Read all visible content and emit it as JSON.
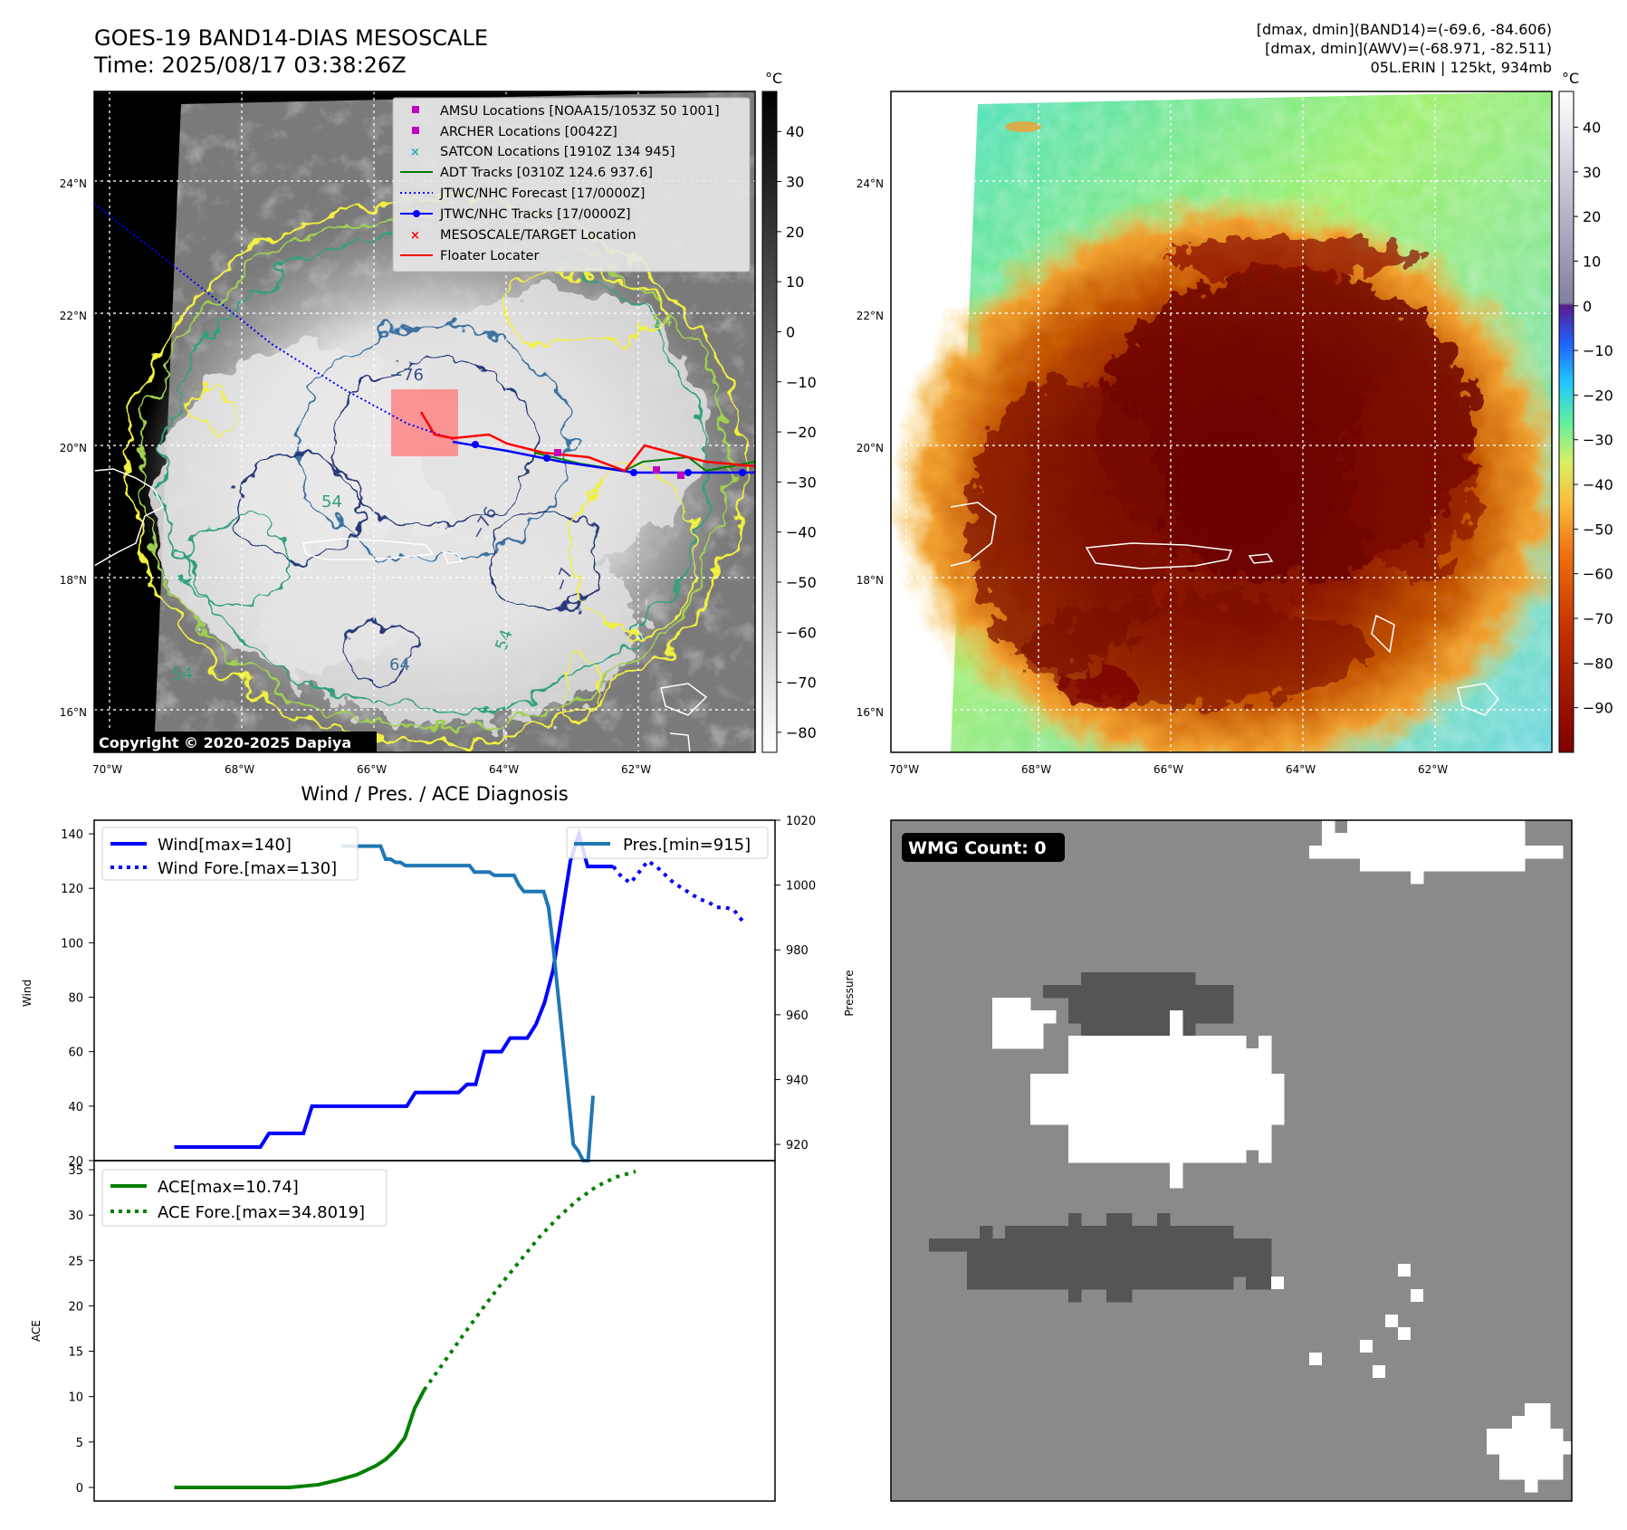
{
  "header": {
    "title_line1": "GOES-19 BAND14-DIAS MESOSCALE",
    "title_line2": "Time: 2025/08/17 03:38:26Z",
    "info_line1": "[dmax, dmin](BAND14)=(-69.6, -84.606)",
    "info_line2": "[dmax, dmin](AWV)=(-68.971, -82.511)",
    "info_line3": "05L.ERIN | 125kt, 934mb"
  },
  "map_axes": {
    "lat_ticks": [
      "24°N",
      "22°N",
      "20°N",
      "18°N",
      "16°N"
    ],
    "lat_values": [
      24,
      22,
      20,
      18,
      16
    ],
    "lon_ticks_left": [
      "70°W",
      "68°W",
      "66°W",
      "64°W",
      "62°W"
    ],
    "lon_ticks_right": [
      "70°W",
      "68°W",
      "66°W",
      "64°W",
      "62°W"
    ],
    "lon_values": [
      -70,
      -68,
      -66,
      -64,
      -62
    ],
    "lon_range": [
      -70.2,
      -60.2
    ],
    "lat_range": [
      15.4,
      25.4
    ],
    "grid": true
  },
  "left_map": {
    "copyright": "Copyright © 2020-2025 Dapiya",
    "contour_labels": [
      "−76",
      "−76",
      "54",
      "54",
      "54",
      "64",
      "−7",
      "54"
    ],
    "legend": [
      {
        "label": "AMSU Locations [NOAA15/1053Z 50 1001]",
        "color": "#c000c0",
        "marker": "square"
      },
      {
        "label": "ARCHER Locations [0042Z]",
        "color": "#c000c0",
        "marker": "square"
      },
      {
        "label": "SATCON Locations [1910Z 134 945]",
        "color": "#20b0b0",
        "marker": "x"
      },
      {
        "label": "ADT Tracks [0310Z 124.6 937.6]",
        "color": "#008000",
        "marker": "line"
      },
      {
        "label": "JTWC/NHC Forecast [17/0000Z]",
        "color": "#0000ff",
        "marker": "dotted"
      },
      {
        "label": "JTWC/NHC Tracks [17/0000Z]",
        "color": "#0000ff",
        "marker": "line-dot"
      },
      {
        "label": "MESOSCALE/TARGET Location",
        "color": "#ff0000",
        "marker": "x"
      },
      {
        "label": "Floater Locater",
        "color": "#ff0000",
        "marker": "line"
      }
    ],
    "colorbar": {
      "unit": "°C",
      "ticks": [
        "40",
        "30",
        "20",
        "10",
        "0",
        "−10",
        "−20",
        "−30",
        "−40",
        "−50",
        "−60",
        "−70",
        "−80"
      ],
      "range": [
        48,
        -84
      ]
    }
  },
  "right_map": {
    "colorbar": {
      "unit": "°C",
      "ticks": [
        "40",
        "30",
        "20",
        "10",
        "0",
        "−10",
        "−20",
        "−30",
        "−40",
        "−50",
        "−60",
        "−70",
        "−80",
        "−90"
      ],
      "range": [
        48,
        -100
      ]
    }
  },
  "diagnosis": {
    "title": "Wind / Pres. / ACE Diagnosis",
    "wind_label": "Wind",
    "pressure_label": "Pressure",
    "ace_label": "ACE",
    "legend_wind": "Wind[max=140]",
    "legend_wind_fore": "Wind Fore.[max=130]",
    "legend_pres": "Pres.[min=915]",
    "legend_ace": "ACE[max=10.74]",
    "legend_ace_fore": "ACE Fore.[max=34.8019]",
    "wind_ticks": [
      "140",
      "120",
      "100",
      "80",
      "60",
      "40",
      "20"
    ],
    "pres_ticks": [
      "1020",
      "1000",
      "980",
      "960",
      "940",
      "920"
    ],
    "ace_ticks": [
      "35",
      "30",
      "25",
      "20",
      "15",
      "10",
      "5",
      "0"
    ]
  },
  "chart_data": [
    {
      "type": "line",
      "title": "Wind / Pres. / ACE Diagnosis",
      "ylabel": "Wind",
      "ylim": [
        20,
        145
      ],
      "series": [
        {
          "name": "Wind[max=140]",
          "color": "#0000ff",
          "style": "solid",
          "x": [
            0,
            1,
            2,
            3,
            4,
            5,
            6,
            7,
            8,
            9,
            10,
            11,
            12,
            13,
            14,
            15,
            16,
            17,
            18,
            19,
            20,
            21,
            22,
            23,
            24,
            25,
            26,
            27,
            28,
            29,
            30,
            31,
            32,
            33,
            34,
            35,
            36,
            37,
            38,
            39,
            40,
            41,
            42,
            43,
            44,
            45,
            46,
            47,
            48,
            49,
            50,
            51
          ],
          "y": [
            25,
            25,
            25,
            25,
            25,
            25,
            25,
            25,
            25,
            25,
            25,
            30,
            30,
            30,
            30,
            30,
            40,
            40,
            40,
            40,
            40,
            40,
            40,
            40,
            40,
            40,
            40,
            40,
            45,
            45,
            45,
            45,
            45,
            45,
            48,
            48,
            60,
            60,
            60,
            65,
            65,
            65,
            70,
            78,
            90,
            110,
            130,
            140,
            128,
            128,
            128,
            128
          ]
        },
        {
          "name": "Wind Fore.[max=130]",
          "color": "#0000ff",
          "style": "dotted",
          "x": [
            51,
            52,
            53,
            54,
            55,
            56,
            57,
            58,
            59,
            60,
            61,
            62,
            63,
            64,
            65,
            66
          ],
          "y": [
            128,
            124,
            122,
            126,
            130,
            128,
            125,
            122,
            120,
            118,
            116,
            115,
            113,
            113,
            112,
            108
          ]
        }
      ]
    },
    {
      "type": "line",
      "ylabel": "Pressure",
      "ylim": [
        915,
        1020
      ],
      "series": [
        {
          "name": "Pres.[min=915]",
          "color": "#1f77b4",
          "style": "solid",
          "x": [
            0,
            1,
            2,
            3,
            4,
            5,
            6,
            7,
            8,
            9,
            10,
            11,
            12,
            13,
            14,
            15,
            16,
            17,
            18,
            19,
            20,
            21,
            22,
            23,
            24,
            25,
            26,
            27,
            28,
            29,
            30,
            31,
            32,
            33,
            34,
            35,
            36,
            37,
            38,
            39,
            40,
            41,
            42,
            43,
            44,
            45,
            46,
            47,
            48,
            49,
            50,
            51
          ],
          "y": [
            1012,
            1012,
            1012,
            1012,
            1012,
            1012,
            1012,
            1012,
            1012,
            1008,
            1008,
            1007,
            1007,
            1006,
            1006,
            1006,
            1006,
            1006,
            1006,
            1006,
            1006,
            1006,
            1006,
            1006,
            1006,
            1006,
            1006,
            1004,
            1004,
            1004,
            1004,
            1003,
            1003,
            1003,
            1003,
            1003,
            1000,
            998,
            998,
            998,
            998,
            998,
            993,
            980,
            965,
            950,
            935,
            920,
            918,
            915,
            915,
            935
          ]
        }
      ]
    },
    {
      "type": "line",
      "ylabel": "ACE",
      "ylim": [
        -1.5,
        36
      ],
      "series": [
        {
          "name": "ACE[max=10.74]",
          "color": "#008000",
          "style": "solid",
          "x": [
            0,
            6,
            12,
            18,
            24,
            30,
            34,
            38,
            40,
            42,
            44,
            46,
            48,
            50,
            52
          ],
          "y": [
            0,
            0,
            0,
            0,
            0,
            0.3,
            0.8,
            1.4,
            1.9,
            2.4,
            3.1,
            4.1,
            5.5,
            8.7,
            10.74
          ]
        },
        {
          "name": "ACE Fore.[max=34.8019]",
          "color": "#008000",
          "style": "dotted",
          "x": [
            52,
            56,
            60,
            64,
            68,
            72,
            76,
            80,
            84,
            88,
            92,
            96
          ],
          "y": [
            10.74,
            13.7,
            16.7,
            19.6,
            22.4,
            25.0,
            27.6,
            29.8,
            31.7,
            33.2,
            34.2,
            34.8019
          ]
        }
      ]
    }
  ],
  "wmg_panel": {
    "badge": "WMG Count: 0",
    "colors": {
      "background": "#8a8a8a",
      "white_region": "#ffffff",
      "dark_region": "#555555"
    }
  },
  "colors": {
    "wind": "#0000ff",
    "pressure": "#1f77b4",
    "ace": "#008000",
    "track_red": "#ff0000",
    "track_green": "#008000",
    "target_box": "#ff8080"
  }
}
